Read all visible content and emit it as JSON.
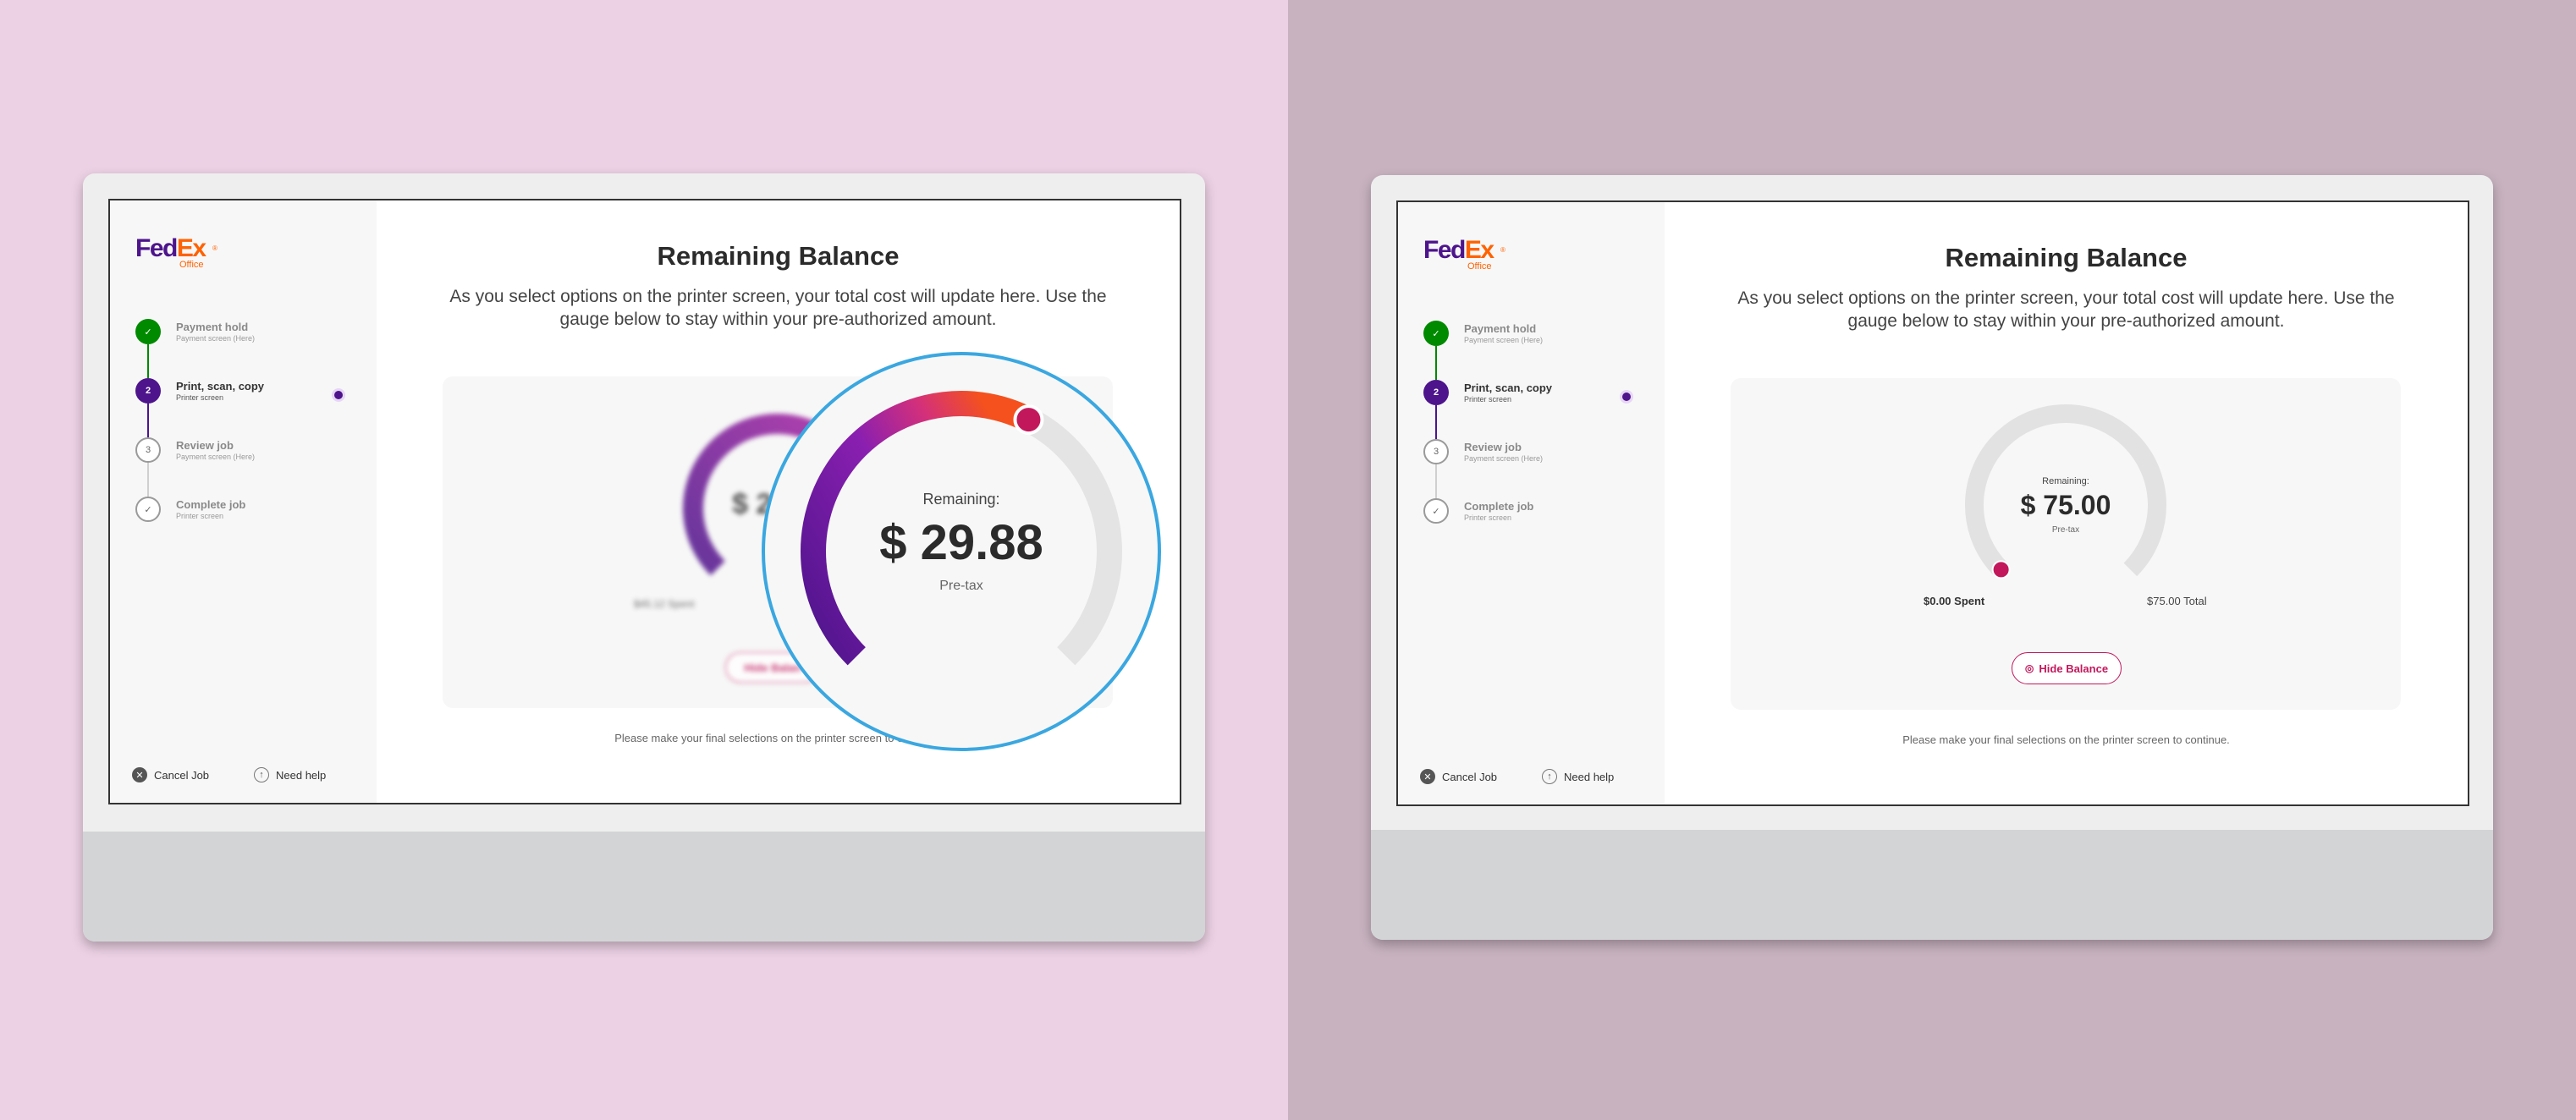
{
  "brand": {
    "logo_fed": "Fed",
    "logo_ex": "Ex",
    "logo_sub": "Office",
    "logo_reg": "®",
    "purple": "#4d148c",
    "orange": "#ff6200",
    "magenta": "#c2185b",
    "success": "#008a00"
  },
  "steps": [
    {
      "title": "Payment hold",
      "sub": "Payment screen (Here)",
      "status": "done",
      "marker": "✓"
    },
    {
      "title": "Print, scan, copy",
      "sub": "Printer screen",
      "status": "active",
      "marker": "2"
    },
    {
      "title": "Review job",
      "sub": "Payment screen (Here)",
      "status": "todo",
      "marker": "3"
    },
    {
      "title": "Complete job",
      "sub": "Printer screen",
      "status": "todo",
      "marker": "✓"
    }
  ],
  "footer": {
    "cancel_label": "Cancel Job",
    "help_label": "Need help",
    "cancel_icon": "close-circle-icon",
    "help_icon": "help-circle-icon"
  },
  "main": {
    "title": "Remaining Balance",
    "description": "As you select options on the printer screen, your total cost will update here. Use the gauge below to stay within your pre-authorized amount.",
    "footnote": "Please make your final selections on the printer screen to continue."
  },
  "left_screen": {
    "zoom": {
      "label": "Remaining:",
      "amount": "$ 29.88",
      "tax_note": "Pre-tax",
      "fraction_remaining": 0.4
    },
    "blurred": {
      "amount_partial": "$ 2",
      "spent_partial": "$45.12 Spent",
      "button_partial": "Hide Balan"
    }
  },
  "right_screen": {
    "gauge": {
      "label": "Remaining:",
      "amount": "$ 75.00",
      "tax_note": "Pre-tax",
      "fraction_remaining": 1.0
    },
    "spent_label": "$0.00 Spent",
    "total_label": "$75.00 Total",
    "hide_button": "Hide Balance",
    "hide_icon": "eye-slash-icon"
  }
}
